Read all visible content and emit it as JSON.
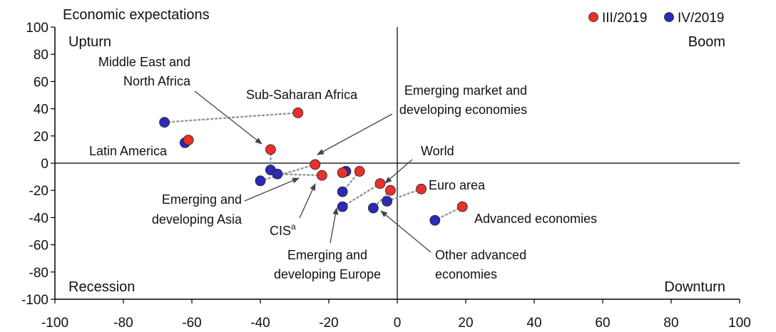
{
  "chart_data": {
    "type": "scatter",
    "title": "Economic expectations",
    "xlim": [
      -100,
      100
    ],
    "ylim": [
      -100,
      100
    ],
    "x_ticks": [
      -100,
      -80,
      -60,
      -40,
      -20,
      0,
      20,
      40,
      60,
      80,
      100
    ],
    "y_ticks": [
      100,
      80,
      60,
      40,
      20,
      0,
      -20,
      -40,
      -60,
      -80,
      -100
    ],
    "legend": {
      "position": "top-right",
      "items": [
        {
          "label": "III/2019",
          "color": "#e8302c"
        },
        {
          "label": "IV/2019",
          "color": "#2b2bb5"
        }
      ]
    },
    "quadrants": [
      "Upturn",
      "Boom",
      "Recession",
      "Downturn"
    ],
    "pairs": [
      {
        "iii": [
          -29,
          37
        ],
        "iv": [
          -68,
          30
        ]
      },
      {
        "iii": [
          -61,
          17
        ],
        "iv": [
          -62,
          15
        ]
      },
      {
        "iii": [
          -37,
          10
        ],
        "iv": [
          -37,
          -5
        ]
      },
      {
        "iii": [
          -24,
          -1
        ],
        "iv": [
          -40,
          -13
        ]
      },
      {
        "iii": [
          -22,
          -9
        ],
        "iv": [
          -35,
          -8
        ]
      },
      {
        "iii": [
          -16,
          -7
        ],
        "iv": [
          -15,
          -6
        ]
      },
      {
        "iii": [
          -11,
          -6
        ],
        "iv": [
          -16,
          -21
        ]
      },
      {
        "iii": [
          -5,
          -15
        ],
        "iv": [
          -16,
          -32
        ]
      },
      {
        "iii": [
          -2,
          -20
        ],
        "iv": [
          -7,
          -33
        ]
      },
      {
        "iii": [
          7,
          -19
        ],
        "iv": [
          -3,
          -28
        ]
      },
      {
        "iii": [
          19,
          -32
        ],
        "iv": [
          11,
          -42
        ]
      }
    ],
    "annotations": [
      {
        "lines": [
          "Middle East and",
          "North Africa"
        ]
      },
      {
        "lines": [
          "Sub-Saharan Africa"
        ]
      },
      {
        "lines": [
          "Emerging market and",
          "developing economies"
        ]
      },
      {
        "lines": [
          "Latin America"
        ]
      },
      {
        "lines": [
          "World"
        ]
      },
      {
        "lines": [
          "Euro area"
        ]
      },
      {
        "lines": [
          "Advanced economies"
        ]
      },
      {
        "lines": [
          "Emerging and",
          "developing Asia"
        ]
      },
      {
        "lines": [
          "CIS"
        ],
        "superscript": "a"
      },
      {
        "lines": [
          "Emerging and",
          "developing Europe"
        ]
      },
      {
        "lines": [
          "Other advanced",
          "economies"
        ]
      }
    ],
    "colors": {
      "connector": "#999999",
      "arrow": "#444444",
      "axis": "#000000"
    }
  }
}
